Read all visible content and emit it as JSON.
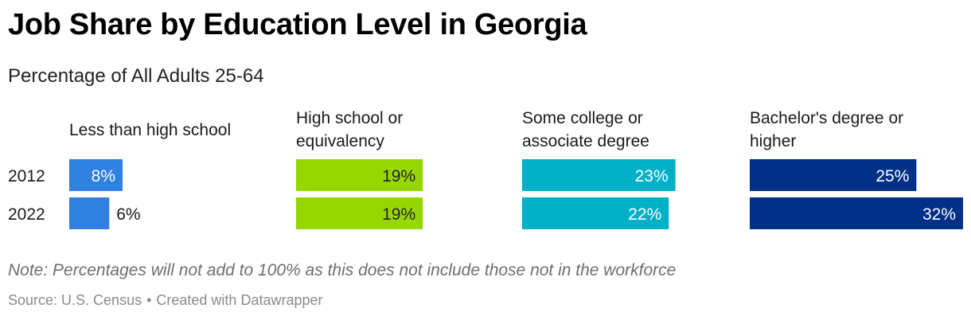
{
  "header": {
    "title": "Job Share by Education Level in Georgia",
    "subtitle": "Percentage of All Adults 25-64"
  },
  "footer": {
    "note": "Note: Percentages will not add to 100% as this does not include those not in the workforce",
    "source": "Source: U.S. Census",
    "separator": "•",
    "credit": "Created with Datawrapper"
  },
  "chart_data": {
    "type": "bar",
    "orientation": "horizontal",
    "layout": "small-multiples",
    "categories": [
      "2012",
      "2022"
    ],
    "unit": "%",
    "xlim": [
      0,
      32
    ],
    "grid": false,
    "legend": "none",
    "series": [
      {
        "name": "Less than high school",
        "label_lines": [
          "Less than high school"
        ],
        "color": "#2f80e0",
        "label_color": "#ffffff",
        "values": [
          8,
          6
        ]
      },
      {
        "name": "High school or equivalency",
        "label_lines": [
          "High school or",
          "equivalency"
        ],
        "color": "#97d700",
        "label_color": "#222222",
        "values": [
          19,
          19
        ]
      },
      {
        "name": "Some college or associate degree",
        "label_lines": [
          "Some college or",
          "associate degree"
        ],
        "color": "#00b0c8",
        "label_color": "#ffffff",
        "values": [
          23,
          22
        ]
      },
      {
        "name": "Bachelor's degree or higher",
        "label_lines": [
          "Bachelor's degree or",
          "higher"
        ],
        "color": "#003087",
        "label_color": "#ffffff",
        "values": [
          25,
          32
        ]
      }
    ]
  }
}
